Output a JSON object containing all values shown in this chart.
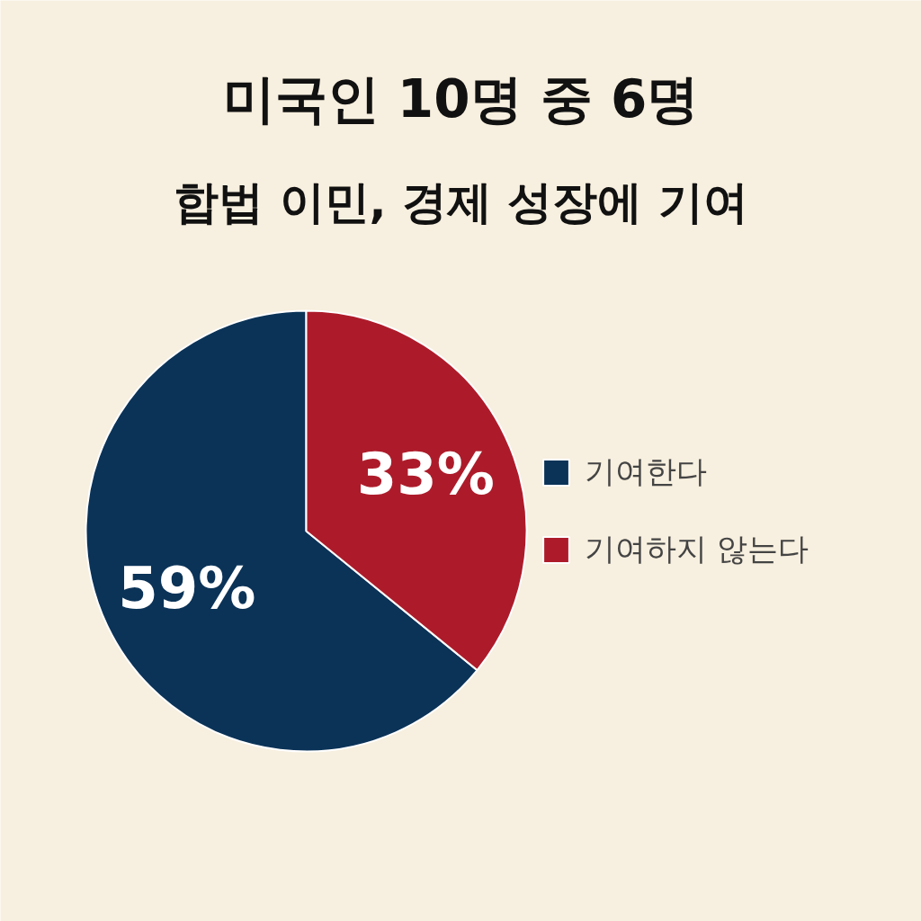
{
  "chart_data": {
    "type": "pie",
    "title": "미국인 10명 중 6명",
    "subtitle": "합법 이민, 경제 성장에 기여",
    "categories": [
      "기여한다",
      "기여하지 않는다"
    ],
    "values": [
      59,
      33
    ],
    "colors": [
      "#0b3358",
      "#ad1b2a"
    ],
    "value_labels": [
      "59%",
      "33%"
    ],
    "legend": "right"
  }
}
